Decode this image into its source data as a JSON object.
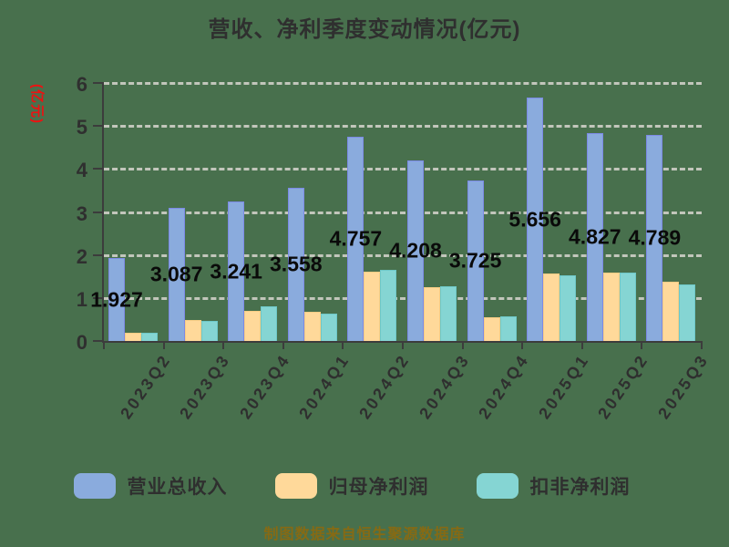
{
  "page": {
    "background_color": "#48704d"
  },
  "chart_data": {
    "type": "bar",
    "title": "营收、净利季度变动情况(亿元)",
    "ylabel": "(亿元)",
    "xlabel": "",
    "ylim": [
      0,
      6
    ],
    "yticks": [
      0,
      1,
      2,
      3,
      4,
      5,
      6
    ],
    "grid": true,
    "grid_style": "dashed",
    "legend_position": "bottom",
    "label_decimals": 3,
    "categories": [
      "2023Q2",
      "2023Q3",
      "2023Q4",
      "2024Q1",
      "2024Q2",
      "2024Q3",
      "2024Q4",
      "2025Q1",
      "2025Q2",
      "2025Q3"
    ],
    "series": [
      {
        "name": "营业总收入",
        "color": "#8aabdd",
        "border_color": "#7c8ae6",
        "show_value_labels": true,
        "values": [
          1.927,
          3.087,
          3.241,
          3.558,
          4.757,
          4.208,
          3.725,
          5.656,
          4.827,
          4.789
        ]
      },
      {
        "name": "归母净利润",
        "color": "#ffd99a",
        "border_color": "#f7cd85",
        "show_value_labels": false,
        "values": [
          0.19,
          0.49,
          0.71,
          0.68,
          1.61,
          1.25,
          0.55,
          1.56,
          1.6,
          1.37
        ]
      },
      {
        "name": "扣非净利润",
        "color": "#85d5d3",
        "border_color": "#6ec8c8",
        "show_value_labels": false,
        "values": [
          0.2,
          0.46,
          0.8,
          0.64,
          1.66,
          1.27,
          0.57,
          1.53,
          1.58,
          1.32
        ]
      }
    ],
    "source_note": "制图数据来自恒生聚源数据库"
  },
  "colors": {
    "background": "#48704d",
    "text": "#2f2f2f",
    "axis": "#3c3c3c",
    "gridline": "#d0d0c8",
    "value_label": "#0a0a0a",
    "ylabel_accent": "#ee1111",
    "source_note": "#866a14"
  }
}
